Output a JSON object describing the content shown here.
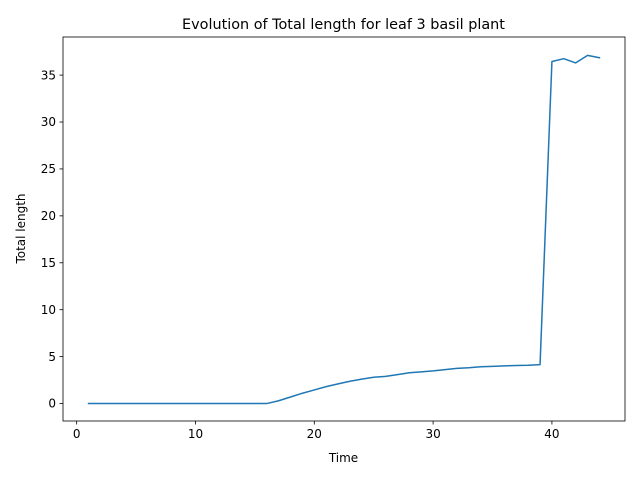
{
  "chart_data": {
    "type": "line",
    "title": "Evolution of Total length for leaf 3 basil plant",
    "xlabel": "Time",
    "ylabel": "Total length",
    "xlim": [
      -1.15,
      46.15
    ],
    "ylim": [
      -1.86,
      39.06
    ],
    "xticks": [
      0,
      10,
      20,
      30,
      40
    ],
    "yticks": [
      0,
      5,
      10,
      15,
      20,
      25,
      30,
      35
    ],
    "grid": false,
    "line_color": "#1f77b4",
    "series": [
      {
        "x": [
          1,
          2,
          3,
          4,
          5,
          6,
          7,
          8,
          9,
          10,
          11,
          12,
          13,
          14,
          15,
          16,
          17,
          18,
          19,
          20,
          21,
          22,
          23,
          24,
          25,
          26,
          27,
          28,
          29,
          30,
          31,
          32,
          33,
          34,
          35,
          36,
          37,
          38,
          39,
          40,
          41,
          42,
          43,
          44
        ],
        "y": [
          0,
          0,
          0,
          0,
          0,
          0,
          0,
          0,
          0,
          0,
          0,
          0,
          0,
          0,
          0,
          0,
          0.3,
          0.7,
          1.1,
          1.45,
          1.8,
          2.1,
          2.38,
          2.6,
          2.8,
          2.9,
          3.08,
          3.28,
          3.38,
          3.48,
          3.62,
          3.75,
          3.82,
          3.92,
          3.96,
          4.02,
          4.05,
          4.08,
          4.15,
          36.45,
          36.75,
          36.3,
          37.1,
          36.85
        ]
      }
    ]
  }
}
